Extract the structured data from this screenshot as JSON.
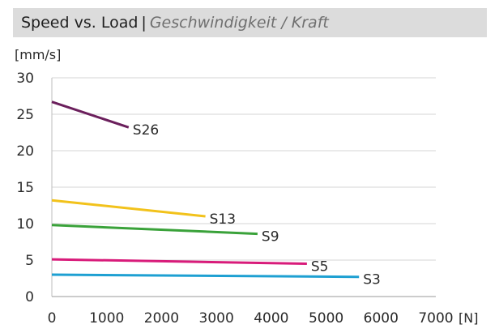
{
  "header": {
    "title_en": "Speed vs. Load",
    "separator": "|",
    "title_de": "Geschwindigkeit / Kraft"
  },
  "chart_data": {
    "type": "line",
    "ylabel": "[mm/s]",
    "xlabel": "[N]",
    "xlim": [
      0,
      7000
    ],
    "ylim": [
      0,
      30
    ],
    "x_ticks": [
      0,
      1000,
      2000,
      3000,
      4000,
      5000,
      6000,
      7000
    ],
    "y_ticks": [
      0,
      5,
      10,
      15,
      20,
      25,
      30
    ],
    "grid": true,
    "series": [
      {
        "name": "S26",
        "color": "#6b1f5c",
        "x": [
          0,
          1400
        ],
        "y": [
          26.7,
          23.2
        ]
      },
      {
        "name": "S13",
        "color": "#f2c21b",
        "x": [
          0,
          2800
        ],
        "y": [
          13.2,
          11.0
        ]
      },
      {
        "name": "S9",
        "color": "#3aa23a",
        "x": [
          0,
          3750
        ],
        "y": [
          9.8,
          8.6
        ]
      },
      {
        "name": "S5",
        "color": "#d81b7a",
        "x": [
          0,
          4650
        ],
        "y": [
          5.1,
          4.5
        ]
      },
      {
        "name": "S3",
        "color": "#1ea0d2",
        "x": [
          0,
          5600
        ],
        "y": [
          3.0,
          2.7
        ]
      }
    ]
  }
}
